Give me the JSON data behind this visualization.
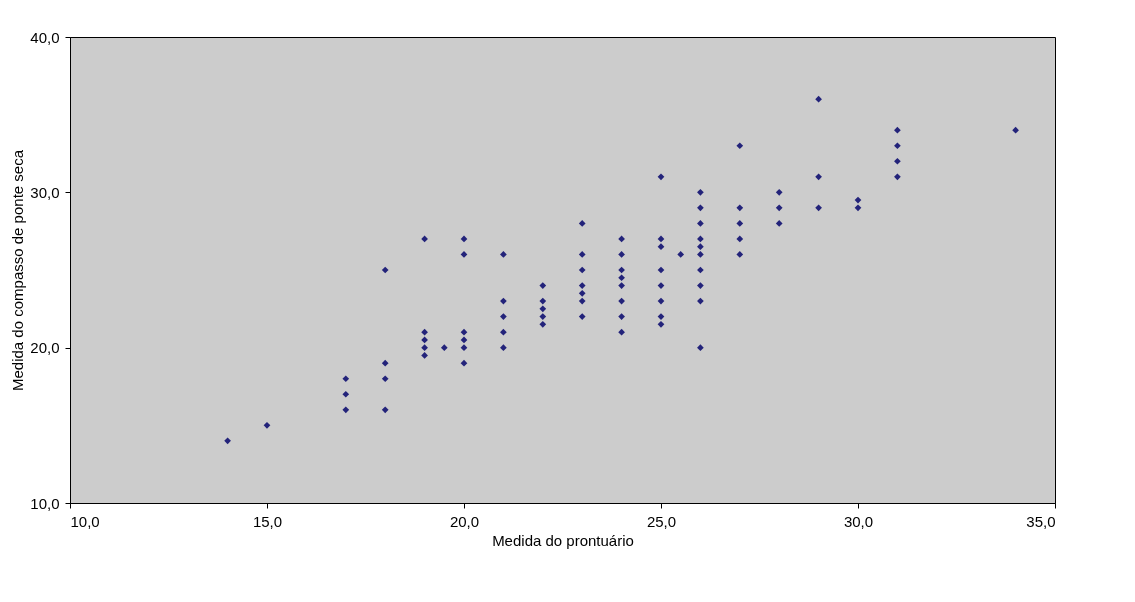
{
  "chart_data": {
    "type": "scatter",
    "xlabel": "Medida do prontuário",
    "ylabel": "Medida do compasso de ponte seca",
    "marker": "diamond",
    "grid": false,
    "legend": false,
    "series": [
      {
        "color": "#23237a",
        "x": [
          14,
          15,
          17,
          17,
          17,
          18,
          18,
          18,
          18,
          19,
          19,
          19,
          19,
          19,
          19.5,
          20,
          20,
          20,
          20,
          20,
          20,
          21,
          21,
          21,
          21,
          21,
          22,
          22,
          22,
          22,
          22,
          23,
          23,
          23,
          23,
          23,
          23,
          23,
          24,
          24,
          24,
          24,
          24,
          24,
          24,
          24,
          25,
          25,
          25,
          25,
          25,
          25,
          25,
          25,
          25.5,
          26,
          26,
          26,
          26,
          26,
          26,
          26,
          26,
          26,
          26,
          27,
          27,
          27,
          27,
          27,
          28,
          28,
          28,
          29,
          29,
          29,
          30,
          30,
          31,
          31,
          31,
          31,
          34
        ],
        "values": [
          14,
          15,
          18,
          17,
          16,
          25,
          19,
          18,
          16,
          27,
          21,
          20.5,
          20,
          19.5,
          20,
          27,
          26,
          21,
          20.5,
          20,
          19,
          26,
          23,
          22,
          21,
          20,
          24,
          23,
          22.5,
          22,
          21.5,
          28,
          26,
          25,
          24,
          23.5,
          23,
          22,
          27,
          26,
          25,
          24.5,
          24,
          23,
          22,
          21,
          31,
          27,
          26.5,
          25,
          24,
          23,
          22,
          21.5,
          26,
          30,
          29,
          28,
          27,
          26.5,
          26,
          25,
          24,
          23,
          20,
          33,
          29,
          28,
          27,
          26,
          30,
          29,
          28,
          36,
          31,
          29,
          29.5,
          29,
          34,
          33,
          32,
          31,
          34
        ]
      }
    ],
    "xlim": [
      10,
      35
    ],
    "xticks": [
      {
        "value": 10,
        "label": "10,0"
      },
      {
        "value": 15,
        "label": "15,0"
      },
      {
        "value": 20,
        "label": "20,0"
      },
      {
        "value": 25,
        "label": "25,0"
      },
      {
        "value": 30,
        "label": "30,0"
      },
      {
        "value": 35,
        "label": "35,0"
      }
    ],
    "ylim": [
      10,
      40
    ],
    "yticks": [
      {
        "value": 10,
        "label": "10,0"
      },
      {
        "value": 20,
        "label": "20,0"
      },
      {
        "value": 30,
        "label": "30,0"
      },
      {
        "value": 40,
        "label": "40,0"
      }
    ]
  }
}
